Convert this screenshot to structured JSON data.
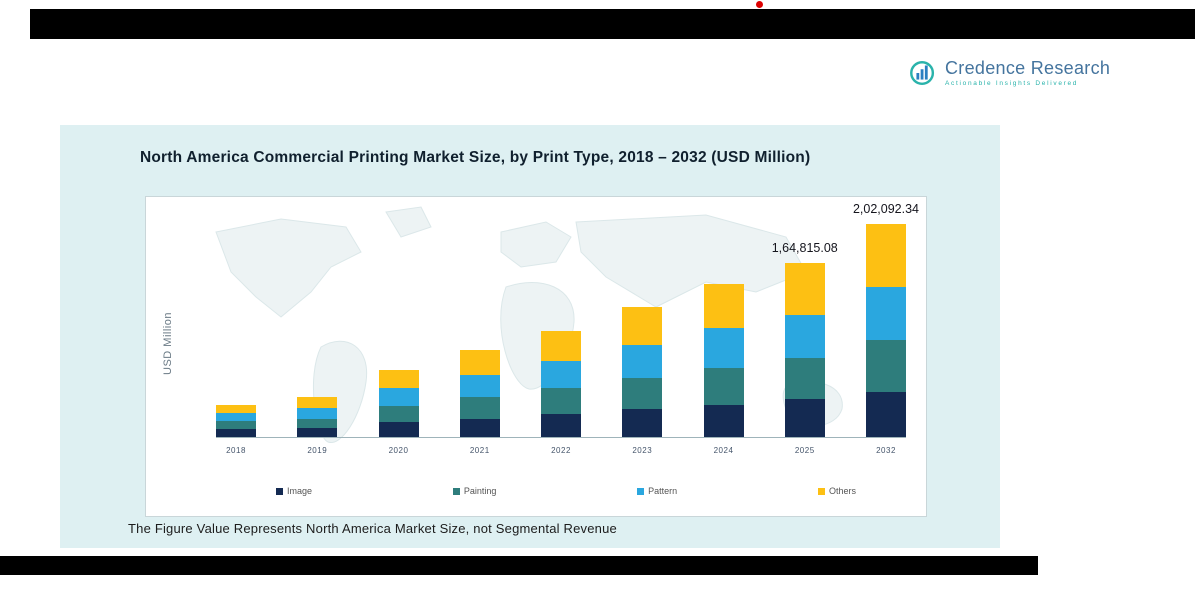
{
  "logo": {
    "name": "Credence Research",
    "tagline": "Actionable Insights Delivered",
    "name_color": "#44749e",
    "tagline_color": "#2ab3ab"
  },
  "panel": {
    "background": "#def0f2",
    "footnote": "The Figure Value Represents North America Market Size, not Segmental Revenue"
  },
  "chart_data": {
    "type": "bar",
    "stacked": true,
    "title": "North America Commercial Printing Market Size, by Print Type, 2018 – 2032 (USD Million)",
    "xlabel": "",
    "ylabel": "USD Million",
    "ylim": [
      0,
      210000
    ],
    "grid": false,
    "legend_position": "bottom",
    "categories": [
      "2018",
      "2019",
      "2020",
      "2021",
      "2022",
      "2023",
      "2024",
      "2025",
      "2032"
    ],
    "series": [
      {
        "name": "Image",
        "color": "#142a52",
        "values": [
          7890,
          8770,
          14030,
          17530,
          21920,
          26300,
          30680,
          35940,
          42700
        ]
      },
      {
        "name": "Painting",
        "color": "#2e7d7c",
        "values": [
          7010,
          8770,
          15780,
          20160,
          24550,
          29810,
          35070,
          39450,
          49340
        ]
      },
      {
        "name": "Pattern",
        "color": "#2aa7df",
        "values": [
          7890,
          9640,
          16660,
          21040,
          25430,
          31560,
          37700,
          40330,
          50290
        ]
      },
      {
        "name": "Others",
        "color": "#fdc013",
        "values": [
          7890,
          10520,
          17530,
          23670,
          28930,
          35950,
          42080,
          49095.08,
          59762.34
        ]
      }
    ],
    "value_labels": [
      "",
      "",
      "",
      "",
      "",
      "",
      "",
      "1,64,815.08",
      "2,02,092.34"
    ],
    "labeled_totals": {
      "2025": 164815.08,
      "2032": 202092.34
    }
  }
}
